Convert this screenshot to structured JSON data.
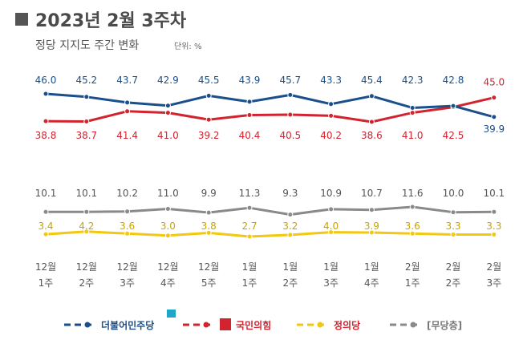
{
  "header": {
    "title": "2023년 2월 3주차",
    "subtitle": "정당 지지도 주간 변화",
    "unit": "단위: %"
  },
  "colors": {
    "title_square": "#555555",
    "democratic": "#1a4f8b",
    "ppp": "#d1242f",
    "justice": "#f2c811",
    "none": "#8a8a8a"
  },
  "chart_data": [
    {
      "type": "line",
      "categories": [
        "12월 1주",
        "12월 2주",
        "12월 3주",
        "12월 4주",
        "12월 5주",
        "1월 1주",
        "1월 2주",
        "1월 3주",
        "1월 4주",
        "2월 1주",
        "2월 2주",
        "2월 3주"
      ],
      "x_tick_lines": [
        [
          "12월",
          "1주"
        ],
        [
          "12월",
          "2주"
        ],
        [
          "12월",
          "3주"
        ],
        [
          "12월",
          "4주"
        ],
        [
          "12월",
          "5주"
        ],
        [
          "1월",
          "1주"
        ],
        [
          "1월",
          "2주"
        ],
        [
          "1월",
          "3주"
        ],
        [
          "1월",
          "4주"
        ],
        [
          "2월",
          "1주"
        ],
        [
          "2월",
          "2주"
        ],
        [
          "2월",
          "3주"
        ]
      ],
      "series": [
        {
          "name": "더불어민주당",
          "color": "#1a4f8b",
          "values": [
            46.0,
            45.2,
            43.7,
            42.9,
            45.5,
            43.9,
            45.7,
            43.3,
            45.4,
            42.3,
            42.8,
            39.9
          ]
        },
        {
          "name": "국민의힘",
          "color": "#d1242f",
          "values": [
            38.8,
            38.7,
            41.4,
            41.0,
            39.2,
            40.4,
            40.5,
            40.2,
            38.6,
            41.0,
            42.5,
            45.0
          ]
        },
        {
          "name": "정의당",
          "color": "#f2c811",
          "values": [
            3.4,
            4.2,
            3.6,
            3.0,
            3.8,
            2.7,
            3.2,
            4.0,
            3.9,
            3.6,
            3.3,
            3.3
          ]
        },
        {
          "name": "[무당층]",
          "color": "#8a8a8a",
          "values": [
            10.1,
            10.1,
            10.2,
            11.0,
            9.9,
            11.3,
            9.3,
            10.9,
            10.7,
            11.6,
            10.0,
            10.1
          ]
        }
      ],
      "legend": [
        "더불어민주당",
        "국민의힘",
        "정의당",
        "[무당층]"
      ],
      "legend_position": "bottom",
      "grid": false
    }
  ]
}
